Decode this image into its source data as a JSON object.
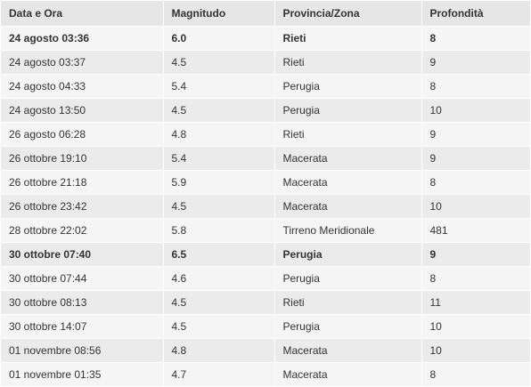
{
  "table": {
    "headers": [
      "Data e Ora",
      "Magnitudo",
      "Provincia/Zona",
      "Profondità"
    ],
    "rows": [
      {
        "date": "24 agosto 03:36",
        "mag": "6.0",
        "zone": "Rieti",
        "depth": "8",
        "bold": true
      },
      {
        "date": "24 agosto 03:37",
        "mag": "4.5",
        "zone": "Rieti",
        "depth": "9",
        "bold": false
      },
      {
        "date": "24 agosto 04:33",
        "mag": "5.4",
        "zone": "Perugia",
        "depth": "8",
        "bold": false
      },
      {
        "date": "24 agosto 13:50",
        "mag": "4.5",
        "zone": "Perugia",
        "depth": "10",
        "bold": false
      },
      {
        "date": "26 agosto 06:28",
        "mag": "4.8",
        "zone": "Rieti",
        "depth": "9",
        "bold": false
      },
      {
        "date": "26 ottobre 19:10",
        "mag": "5.4",
        "zone": "Macerata",
        "depth": "9",
        "bold": false
      },
      {
        "date": "26 ottobre 21:18",
        "mag": "5.9",
        "zone": "Macerata",
        "depth": "8",
        "bold": false
      },
      {
        "date": "26 ottobre 23:42",
        "mag": "4.5",
        "zone": "Macerata",
        "depth": "10",
        "bold": false
      },
      {
        "date": "28 ottobre 22:02",
        "mag": "5.8",
        "zone": "Tirreno Meridionale",
        "depth": "481",
        "bold": false
      },
      {
        "date": "30 ottobre 07:40",
        "mag": "6.5",
        "zone": "Perugia",
        "depth": "9",
        "bold": true
      },
      {
        "date": "30 ottobre 07:44",
        "mag": "4.6",
        "zone": "Perugia",
        "depth": "8",
        "bold": false
      },
      {
        "date": "30 ottobre 08:13",
        "mag": "4.5",
        "zone": "Rieti",
        "depth": "11",
        "bold": false
      },
      {
        "date": "30 ottobre 14:07",
        "mag": "4.5",
        "zone": "Perugia",
        "depth": "10",
        "bold": false
      },
      {
        "date": "01 novembre 08:56",
        "mag": "4.8",
        "zone": "Macerata",
        "depth": "10",
        "bold": false
      },
      {
        "date": "01 novembre 01:35",
        "mag": "4.7",
        "zone": "Macerata",
        "depth": "8",
        "bold": false
      }
    ]
  },
  "colors": {
    "header_bg": "#e6e6e6",
    "row_odd_bg": "#f5f5f5",
    "row_even_bg": "#ebebeb",
    "text": "#333333"
  }
}
